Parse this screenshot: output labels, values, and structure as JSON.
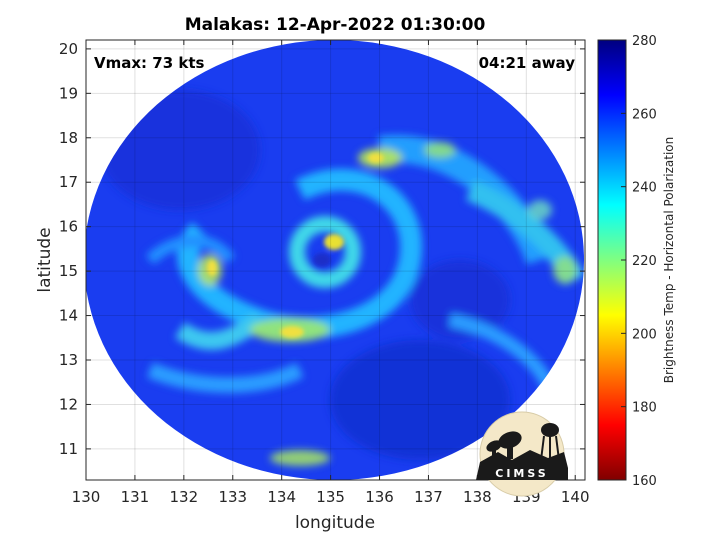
{
  "chart_data": {
    "type": "heatmap",
    "title": "Malakas: 12-Apr-2022 01:30:00",
    "xlabel": "longitude",
    "ylabel": "latitude",
    "xlim": [
      130,
      140.2
    ],
    "ylim": [
      10.3,
      20.2
    ],
    "xticks": [
      "130",
      "131",
      "132",
      "133",
      "134",
      "135",
      "136",
      "137",
      "138",
      "139",
      "140"
    ],
    "yticks": [
      "11",
      "12",
      "13",
      "14",
      "15",
      "16",
      "17",
      "18",
      "19",
      "20"
    ],
    "grid": true,
    "annotations": {
      "vmax": "Vmax: 73 kts",
      "away": "04:21 away"
    },
    "center": {
      "lon": 135.1,
      "lat": 15.4
    },
    "colorbar": {
      "label": "Brightness Temp - Horizontal Polarization",
      "min": 160,
      "max": 280,
      "ticks": [
        "160",
        "180",
        "200",
        "220",
        "240",
        "260",
        "280"
      ],
      "colormap": "jet"
    }
  },
  "logo": {
    "text": "CIMSS"
  }
}
